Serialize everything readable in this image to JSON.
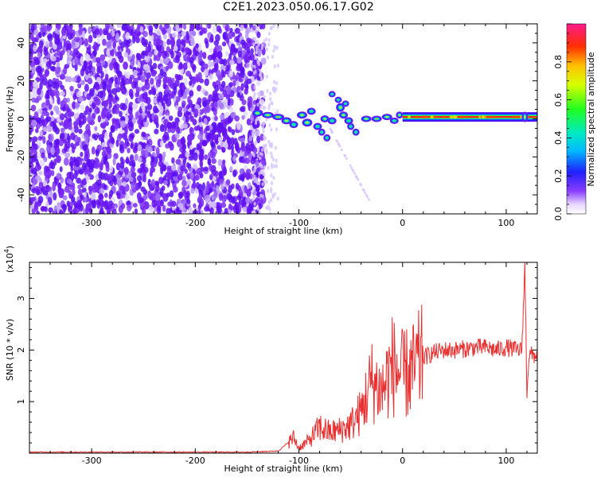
{
  "title": "C2E1.2023.050.06.17.G02",
  "chart_data": [
    {
      "type": "heatmap",
      "title": "",
      "xlabel": "Height of straight line (km)",
      "ylabel": "Frequency (Hz)",
      "xlim": [
        -360,
        130
      ],
      "ylim": [
        -50,
        50
      ],
      "x_ticks": [
        -300,
        -200,
        -100,
        0,
        100
      ],
      "y_ticks": [
        -40,
        -20,
        0,
        20,
        40
      ],
      "colorbar": {
        "label": "Normalized spectral amplitude",
        "range": [
          0,
          1
        ],
        "ticks": [
          0.0,
          0.2,
          0.4,
          0.6,
          0.8
        ],
        "colormap": "rainbow (violet to magenta)"
      },
      "features": {
        "noise_region_x": [
          -360,
          -140
        ],
        "signal_start_x": -145,
        "carrier_frequency": 1,
        "carrier_x": [
          0,
          130
        ],
        "jagged_segment_x": [
          -145,
          0
        ]
      }
    },
    {
      "type": "line",
      "title": "",
      "xlabel": "Height of straight line (km)",
      "ylabel": "SNR (10 * v/v)",
      "y_scale_label": "(x10",
      "y_scale_exponent": "4",
      "y_scale_suffix": ")",
      "xlim": [
        -360,
        130
      ],
      "ylim": [
        0,
        3.7
      ],
      "x_ticks": [
        -300,
        -200,
        -100,
        0,
        100
      ],
      "y_ticks": [
        1,
        2,
        3
      ],
      "series": [
        {
          "color": "#e83030",
          "points": [
            [
              -360,
              0.02
            ],
            [
              -300,
              0.02
            ],
            [
              -200,
              0.02
            ],
            [
              -150,
              0.02
            ],
            [
              -120,
              0.04
            ],
            [
              -105,
              0.3
            ],
            [
              -100,
              0.1
            ],
            [
              -90,
              0.25
            ],
            [
              -80,
              0.5
            ],
            [
              -70,
              0.4
            ],
            [
              -60,
              0.45
            ],
            [
              -50,
              0.55
            ],
            [
              -40,
              0.8
            ],
            [
              -30,
              1.4
            ],
            [
              -20,
              1.2
            ],
            [
              -10,
              1.7
            ],
            [
              0,
              1.5
            ],
            [
              10,
              1.6
            ],
            [
              20,
              1.85
            ],
            [
              30,
              1.95
            ],
            [
              40,
              2.0
            ],
            [
              50,
              2.0
            ],
            [
              60,
              2.02
            ],
            [
              70,
              2.05
            ],
            [
              80,
              2.05
            ],
            [
              90,
              2.0
            ],
            [
              100,
              2.05
            ],
            [
              110,
              2.0
            ],
            [
              115,
              2.0
            ],
            [
              118,
              3.6
            ],
            [
              120,
              1.2
            ],
            [
              122,
              1.9
            ],
            [
              130,
              1.9
            ]
          ]
        }
      ]
    }
  ]
}
